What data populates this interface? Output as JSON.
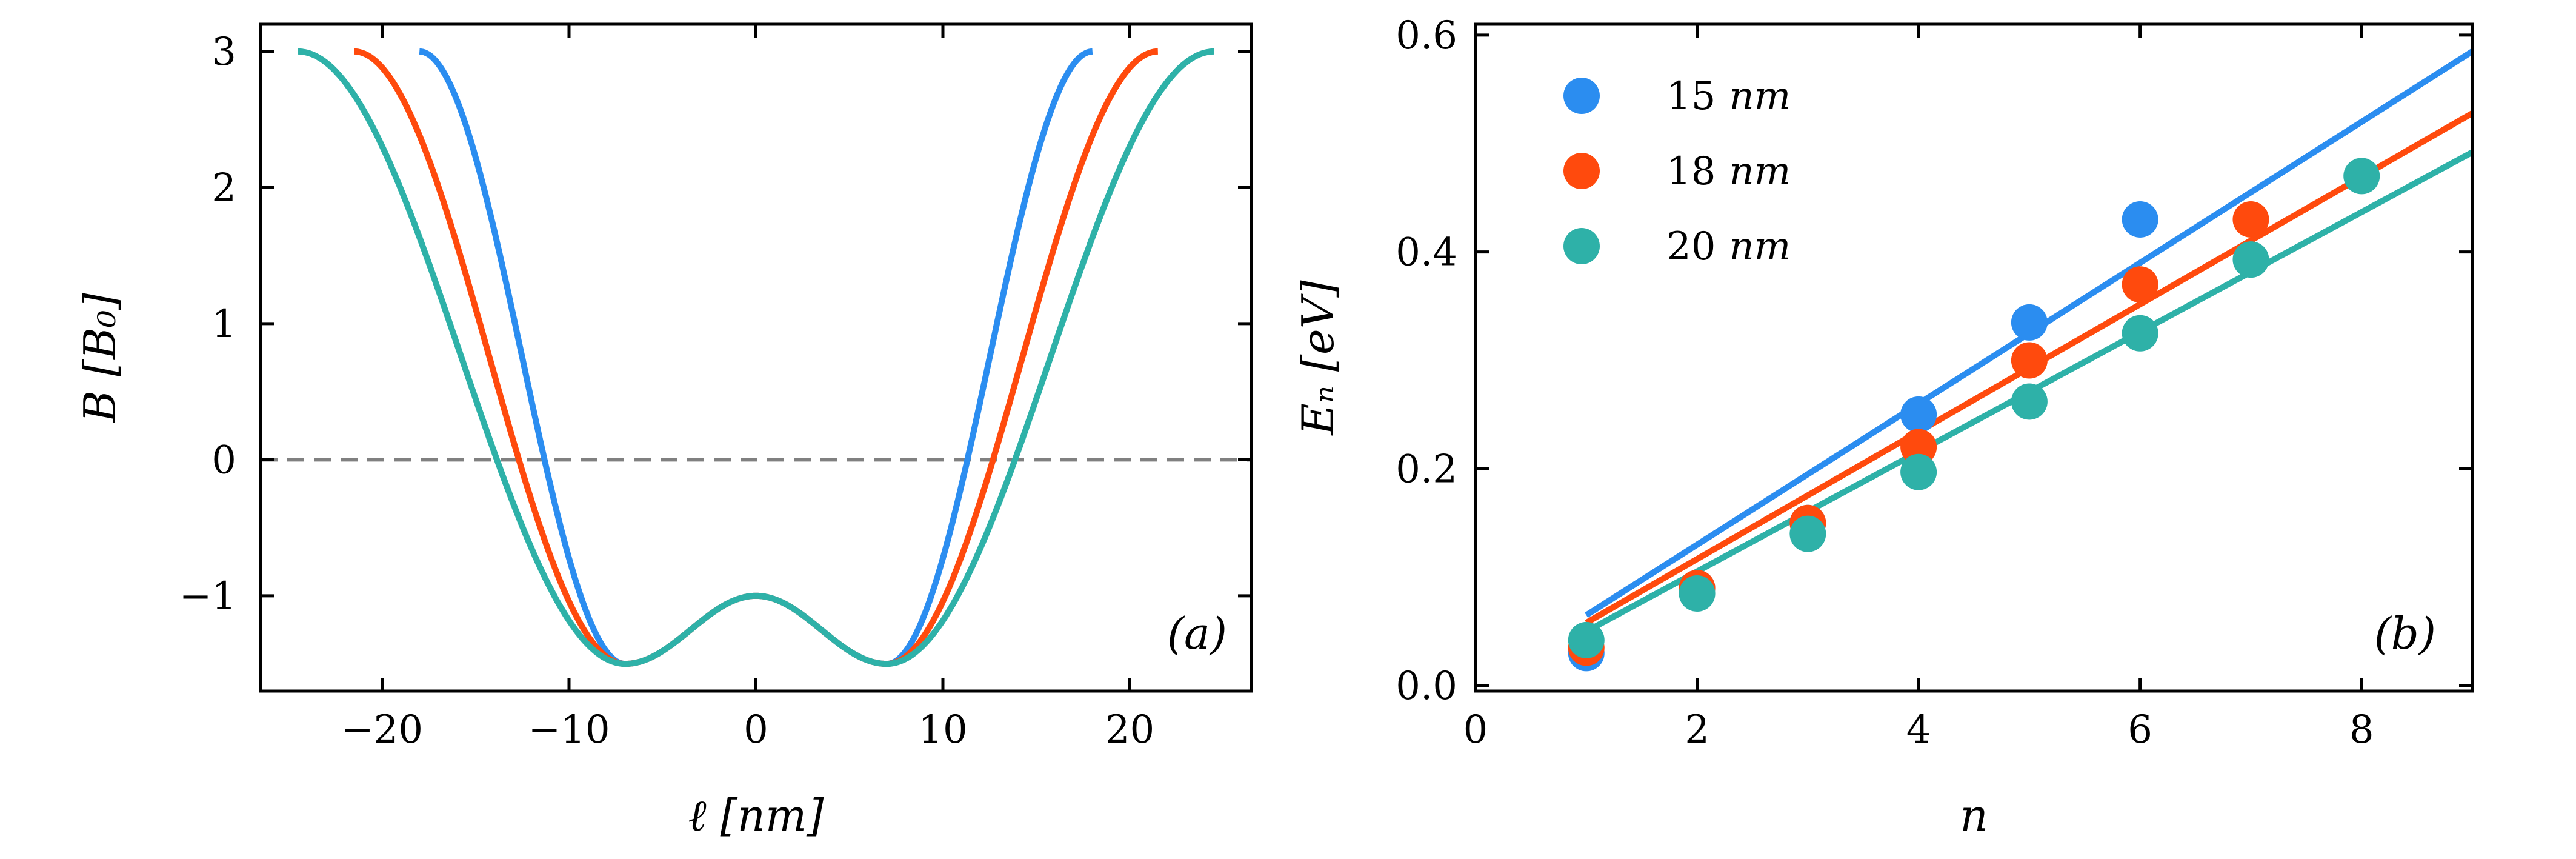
{
  "colors": {
    "blue": "#2b8df0",
    "orange": "#ff4a0d",
    "teal": "#2eb1a8",
    "dashed": "#808080",
    "axis": "#000000"
  },
  "chart_data": [
    {
      "type": "line",
      "panel_label": "(a)",
      "xlabel": "ℓ [nm]",
      "ylabel": "B [B₀]",
      "xlim": [
        -26.5,
        26.5
      ],
      "ylim": [
        -1.7,
        3.2
      ],
      "xticks": [
        -20,
        -10,
        0,
        10,
        20
      ],
      "xtick_labels": [
        "−20",
        "−10",
        "0",
        "10",
        "20"
      ],
      "yticks": [
        -1,
        0,
        1,
        2,
        3
      ],
      "ytick_labels": [
        "−1",
        "0",
        "1",
        "2",
        "3"
      ],
      "reference_line": {
        "y": 0,
        "style": "dashed"
      },
      "series": [
        {
          "name": "15 nm",
          "color": "blue",
          "L": 18
        },
        {
          "name": "18 nm",
          "color": "orange",
          "L": 21.5
        },
        {
          "name": "20 nm",
          "color": "teal",
          "L": 24.5
        }
      ],
      "curve_params": {
        "peak": 3,
        "min": -1.5,
        "center_value": -1,
        "min_position": 7
      }
    },
    {
      "type": "scatter",
      "panel_label": "(b)",
      "xlabel": "n",
      "ylabel": "Eₙ [eV]",
      "xlim": [
        0,
        9
      ],
      "ylim": [
        -0.005,
        0.61
      ],
      "xticks": [
        0,
        2,
        4,
        6,
        8
      ],
      "xtick_labels": [
        "0",
        "2",
        "4",
        "6",
        "8"
      ],
      "yticks": [
        0.0,
        0.2,
        0.4,
        0.6
      ],
      "ytick_labels": [
        "0.0",
        "0.2",
        "0.4",
        "0.6"
      ],
      "legend": {
        "placement": "top-left"
      },
      "series": [
        {
          "name": "15 nm",
          "label_num": "15",
          "label_unit": "nm",
          "color": "blue",
          "x": [
            1,
            2,
            3,
            4,
            5,
            6
          ],
          "y": [
            0.03,
            0.09,
            0.15,
            0.25,
            0.335,
            0.43
          ],
          "fit": {
            "x": [
              1,
              9
            ],
            "y": [
              0.065,
              0.585
            ]
          }
        },
        {
          "name": "18 nm",
          "label_num": "18",
          "label_unit": "nm",
          "color": "orange",
          "x": [
            1,
            2,
            3,
            4,
            5,
            6,
            7
          ],
          "y": [
            0.035,
            0.09,
            0.15,
            0.22,
            0.3,
            0.37,
            0.43
          ],
          "fit": {
            "x": [
              1,
              9
            ],
            "y": [
              0.058,
              0.528
            ]
          }
        },
        {
          "name": "20 nm",
          "label_num": "20",
          "label_unit": "nm",
          "color": "teal",
          "x": [
            1,
            2,
            3,
            4,
            5,
            6,
            7,
            8
          ],
          "y": [
            0.042,
            0.085,
            0.14,
            0.197,
            0.262,
            0.325,
            0.393,
            0.47
          ],
          "fit": {
            "x": [
              1,
              9
            ],
            "y": [
              0.05,
              0.492
            ]
          }
        }
      ]
    }
  ]
}
